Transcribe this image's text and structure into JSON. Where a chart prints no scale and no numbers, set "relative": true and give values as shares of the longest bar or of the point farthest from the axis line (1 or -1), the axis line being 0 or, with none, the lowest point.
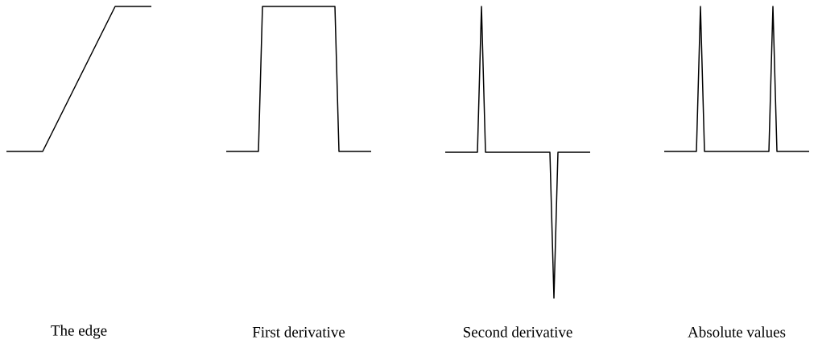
{
  "chart_data": [
    {
      "type": "line",
      "relative": true,
      "xlabel": "The edge",
      "categories": [
        null,
        null,
        null,
        null,
        null
      ],
      "series": [
        {
          "color": "#000000",
          "values": [
            0,
            0,
            0.5,
            1,
            1
          ]
        }
      ]
    },
    {
      "type": "line",
      "relative": true,
      "xlabel": "First derivative",
      "categories": [
        null,
        null,
        null,
        null,
        null,
        null,
        null,
        null,
        null,
        null,
        null,
        null,
        null,
        null,
        null,
        null,
        null,
        null,
        null,
        null,
        null,
        null,
        null,
        null,
        null,
        null,
        null,
        null,
        null,
        null,
        null,
        null,
        null,
        null,
        null,
        null,
        null
      ],
      "series": [
        {
          "color": "#000000",
          "values": [
            0,
            0,
            0,
            0,
            0,
            0,
            0,
            0,
            0,
            1,
            1,
            1,
            1,
            1,
            1,
            1,
            1,
            1,
            1,
            1,
            1,
            1,
            1,
            1,
            1,
            1,
            1,
            1,
            0,
            0,
            0,
            0,
            0,
            0,
            0,
            0,
            0
          ]
        }
      ]
    },
    {
      "type": "line",
      "relative": true,
      "xlabel": "Second derivative",
      "categories": [
        null,
        null,
        null,
        null,
        null,
        null,
        null,
        null,
        null,
        null,
        null,
        null,
        null,
        null,
        null,
        null,
        null,
        null,
        null,
        null,
        null,
        null,
        null,
        null,
        null,
        null,
        null,
        null,
        null,
        null,
        null,
        null,
        null,
        null,
        null,
        null,
        null
      ],
      "series": [
        {
          "color": "#000000",
          "values": [
            0.5,
            0.5,
            0.5,
            0.5,
            0.5,
            0.5,
            0.5,
            0.5,
            0.5,
            1,
            0.5,
            0.5,
            0.5,
            0.5,
            0.5,
            0.5,
            0.5,
            0.5,
            0.5,
            0.5,
            0.5,
            0.5,
            0.5,
            0.5,
            0.5,
            0.5,
            0.5,
            0,
            0.5,
            0.5,
            0.5,
            0.5,
            0.5,
            0.5,
            0.5,
            0.5,
            0.5
          ]
        }
      ]
    },
    {
      "type": "line",
      "relative": true,
      "xlabel": "Absolute values",
      "categories": [
        null,
        null,
        null,
        null,
        null,
        null,
        null,
        null,
        null,
        null,
        null,
        null,
        null,
        null,
        null,
        null,
        null,
        null,
        null,
        null,
        null,
        null,
        null,
        null,
        null,
        null,
        null,
        null,
        null,
        null,
        null,
        null,
        null,
        null,
        null,
        null,
        null
      ],
      "series": [
        {
          "color": "#000000",
          "values": [
            0,
            0,
            0,
            0,
            0,
            0,
            0,
            0,
            0,
            1,
            0,
            0,
            0,
            0,
            0,
            0,
            0,
            0,
            0,
            0,
            0,
            0,
            0,
            0,
            0,
            0,
            0,
            1,
            0,
            0,
            0,
            0,
            0,
            0,
            0,
            0,
            0
          ]
        }
      ]
    }
  ]
}
